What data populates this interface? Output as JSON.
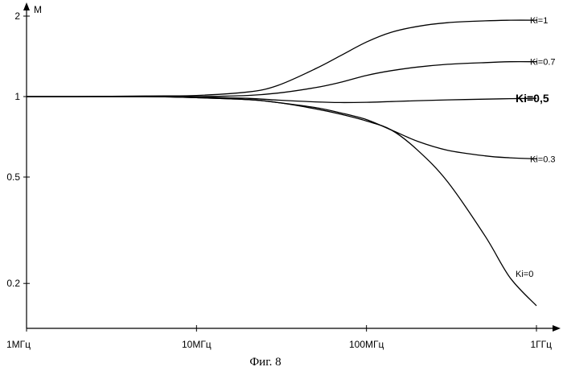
{
  "chart_data": {
    "type": "line",
    "title": "",
    "caption": "Фиг. 8",
    "ylabel": "M",
    "xlabel": "",
    "x_scale": "log",
    "y_scale": "log",
    "x_range_hz": [
      1000000,
      1000000000
    ],
    "y_range": [
      0.15,
      2.1
    ],
    "x_ticks": [
      {
        "value": 1000000,
        "label": "1МГц"
      },
      {
        "value": 10000000,
        "label": "10МГц"
      },
      {
        "value": 100000000,
        "label": "100МГц"
      },
      {
        "value": 1000000000,
        "label": "1ГГц"
      }
    ],
    "y_ticks": [
      {
        "value": 0.2,
        "label": "0.2"
      },
      {
        "value": 0.5,
        "label": "0.5"
      },
      {
        "value": 1,
        "label": "1"
      },
      {
        "value": 2,
        "label": "2"
      }
    ],
    "x": [
      1000000,
      2000000,
      5000000,
      10000000,
      20000000,
      30000000,
      50000000,
      70000000,
      100000000,
      140000000,
      200000000,
      300000000,
      500000000,
      700000000,
      1000000000
    ],
    "series": [
      {
        "name": "Ki=1",
        "bold": false,
        "values": [
          1.0,
          1.0,
          1.005,
          1.01,
          1.04,
          1.1,
          1.27,
          1.42,
          1.6,
          1.74,
          1.83,
          1.89,
          1.92,
          1.93,
          1.93
        ]
      },
      {
        "name": "Ki=0.7",
        "bold": false,
        "values": [
          1.0,
          1.0,
          1.0,
          1.0,
          1.01,
          1.03,
          1.08,
          1.13,
          1.2,
          1.25,
          1.29,
          1.32,
          1.34,
          1.35,
          1.35
        ]
      },
      {
        "name": "Ki=0,5",
        "bold": true,
        "values": [
          1.0,
          1.0,
          1.0,
          0.995,
          0.985,
          0.97,
          0.955,
          0.95,
          0.952,
          0.958,
          0.965,
          0.972,
          0.978,
          0.982,
          0.985
        ]
      },
      {
        "name": "Ki=0.3",
        "bold": false,
        "values": [
          1.0,
          1.0,
          1.0,
          0.99,
          0.975,
          0.95,
          0.91,
          0.87,
          0.82,
          0.75,
          0.68,
          0.63,
          0.6,
          0.59,
          0.585
        ]
      },
      {
        "name": "Ki=0",
        "bold": false,
        "values": [
          1.0,
          1.0,
          1.0,
          0.99,
          0.975,
          0.95,
          0.9,
          0.86,
          0.81,
          0.75,
          0.63,
          0.48,
          0.3,
          0.21,
          0.165
        ]
      }
    ],
    "grid": false,
    "legend": "inline-right"
  }
}
